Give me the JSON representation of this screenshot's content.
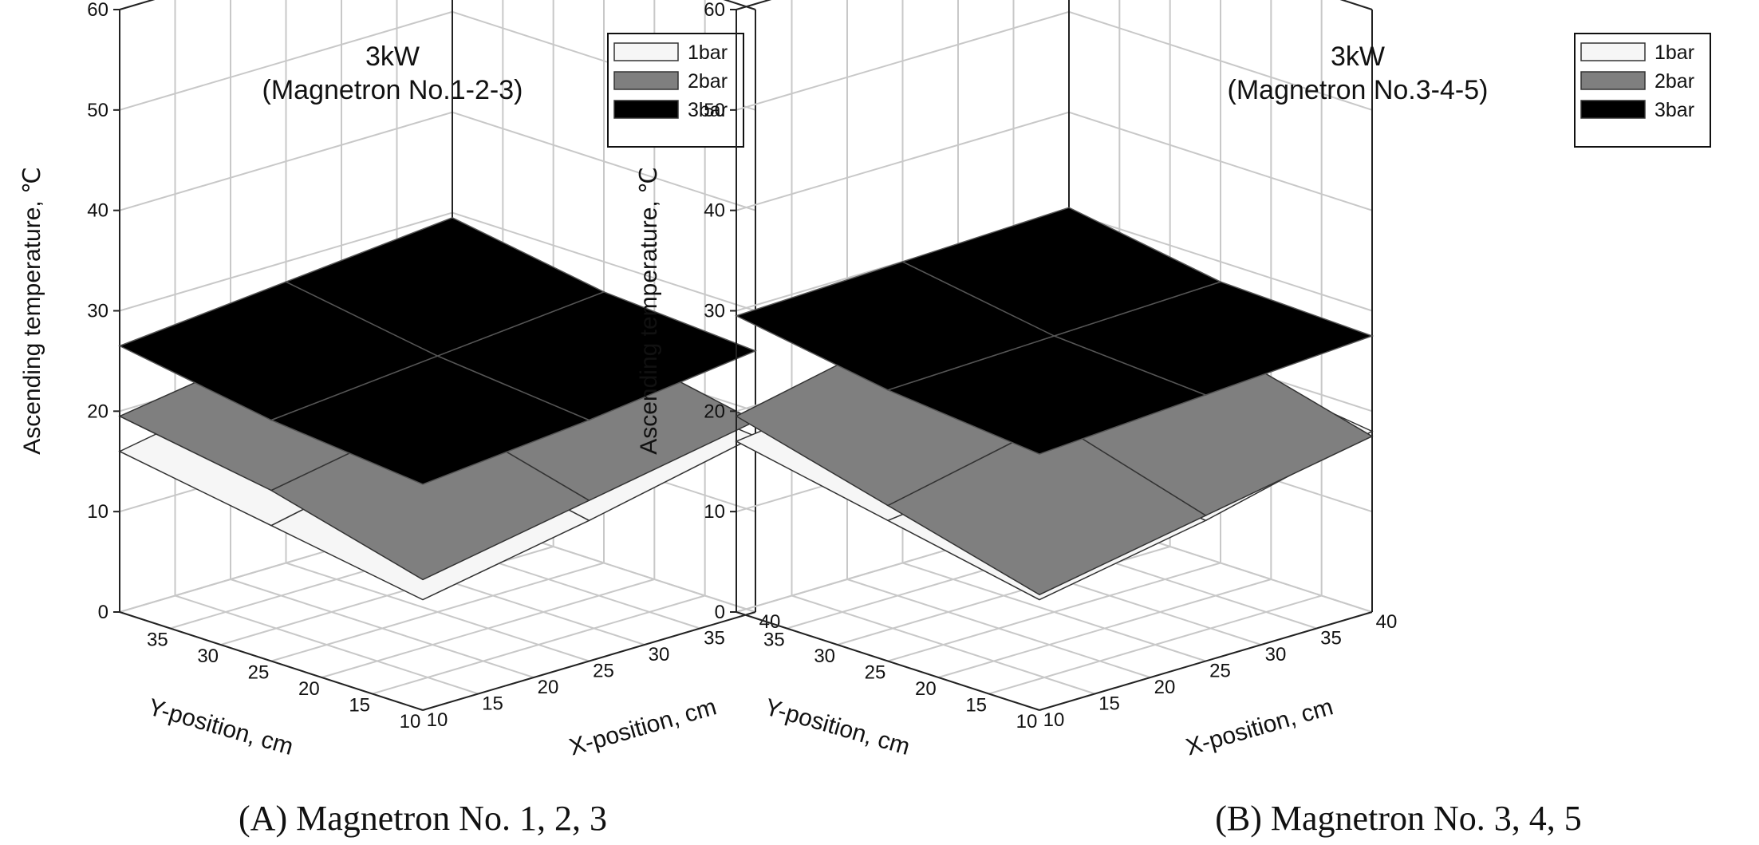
{
  "chart_data": [
    {
      "type": "surface3d",
      "panel_caption": "(A) Magnetron No. 1, 2, 3",
      "title_lines": [
        "3kW",
        "(Magnetron No.1-2-3)"
      ],
      "zlabel": "Ascending temperature, ℃",
      "xlabel": "X-position, cm",
      "ylabel": "Y-position, cm",
      "zlim": [
        0,
        60
      ],
      "z_ticks": [
        "0",
        "10",
        "20",
        "30",
        "40",
        "50",
        "60"
      ],
      "x_ticks": [
        "10",
        "15",
        "20",
        "25",
        "30",
        "35",
        "40"
      ],
      "y_ticks": [
        "10",
        "15",
        "20",
        "25",
        "30",
        "35"
      ],
      "legend": [
        "1bar",
        "2bar",
        "3bar"
      ],
      "x": [
        10,
        25,
        40
      ],
      "y": [
        10,
        25,
        40
      ],
      "series": [
        {
          "name": "1bar",
          "color": "#f6f6f6",
          "z": [
            [
              11,
              14,
              17.5
            ],
            [
              13.5,
              17,
              19
            ],
            [
              16,
              19,
              21
            ]
          ]
        },
        {
          "name": "2bar",
          "color": "#7f7f7f",
          "z": [
            [
              13,
              16,
              19
            ],
            [
              17,
              20,
              22
            ],
            [
              19.5,
              22,
              25
            ]
          ]
        },
        {
          "name": "3bar",
          "color": "#000000",
          "z": [
            [
              22.5,
              24,
              26
            ],
            [
              24,
              25.5,
              27
            ],
            [
              26.5,
              28,
              29.5
            ]
          ]
        }
      ]
    },
    {
      "type": "surface3d",
      "panel_caption": "(B) Magnetron No. 3, 4, 5",
      "title_lines": [
        "3kW",
        "(Magnetron No.3-4-5)"
      ],
      "zlabel": "Ascending temperature, ℃",
      "xlabel": "X-position, cm",
      "ylabel": "Y-position, cm",
      "zlim": [
        0,
        60
      ],
      "z_ticks": [
        "0",
        "10",
        "20",
        "30",
        "40",
        "50",
        "60"
      ],
      "x_ticks": [
        "10",
        "15",
        "20",
        "25",
        "30",
        "35",
        "40"
      ],
      "y_ticks": [
        "10",
        "15",
        "20",
        "25",
        "30",
        "35"
      ],
      "legend": [
        "1bar",
        "2bar",
        "3bar"
      ],
      "x": [
        10,
        25,
        40
      ],
      "y": [
        10,
        25,
        40
      ],
      "series": [
        {
          "name": "1bar",
          "color": "#f6f6f6",
          "z": [
            [
              11,
              14,
              18
            ],
            [
              14,
              16,
              20
            ],
            [
              17,
              19,
              21
            ]
          ]
        },
        {
          "name": "2bar",
          "color": "#7f7f7f",
          "z": [
            [
              11.5,
              14.5,
              17.5
            ],
            [
              15.5,
              19,
              21.5
            ],
            [
              19.5,
              23,
              25
            ]
          ]
        },
        {
          "name": "3bar",
          "color": "#000000",
          "z": [
            [
              25.5,
              26.5,
              27.5
            ],
            [
              27,
              27.5,
              28
            ],
            [
              29.5,
              30,
              30.5
            ]
          ]
        }
      ]
    }
  ]
}
